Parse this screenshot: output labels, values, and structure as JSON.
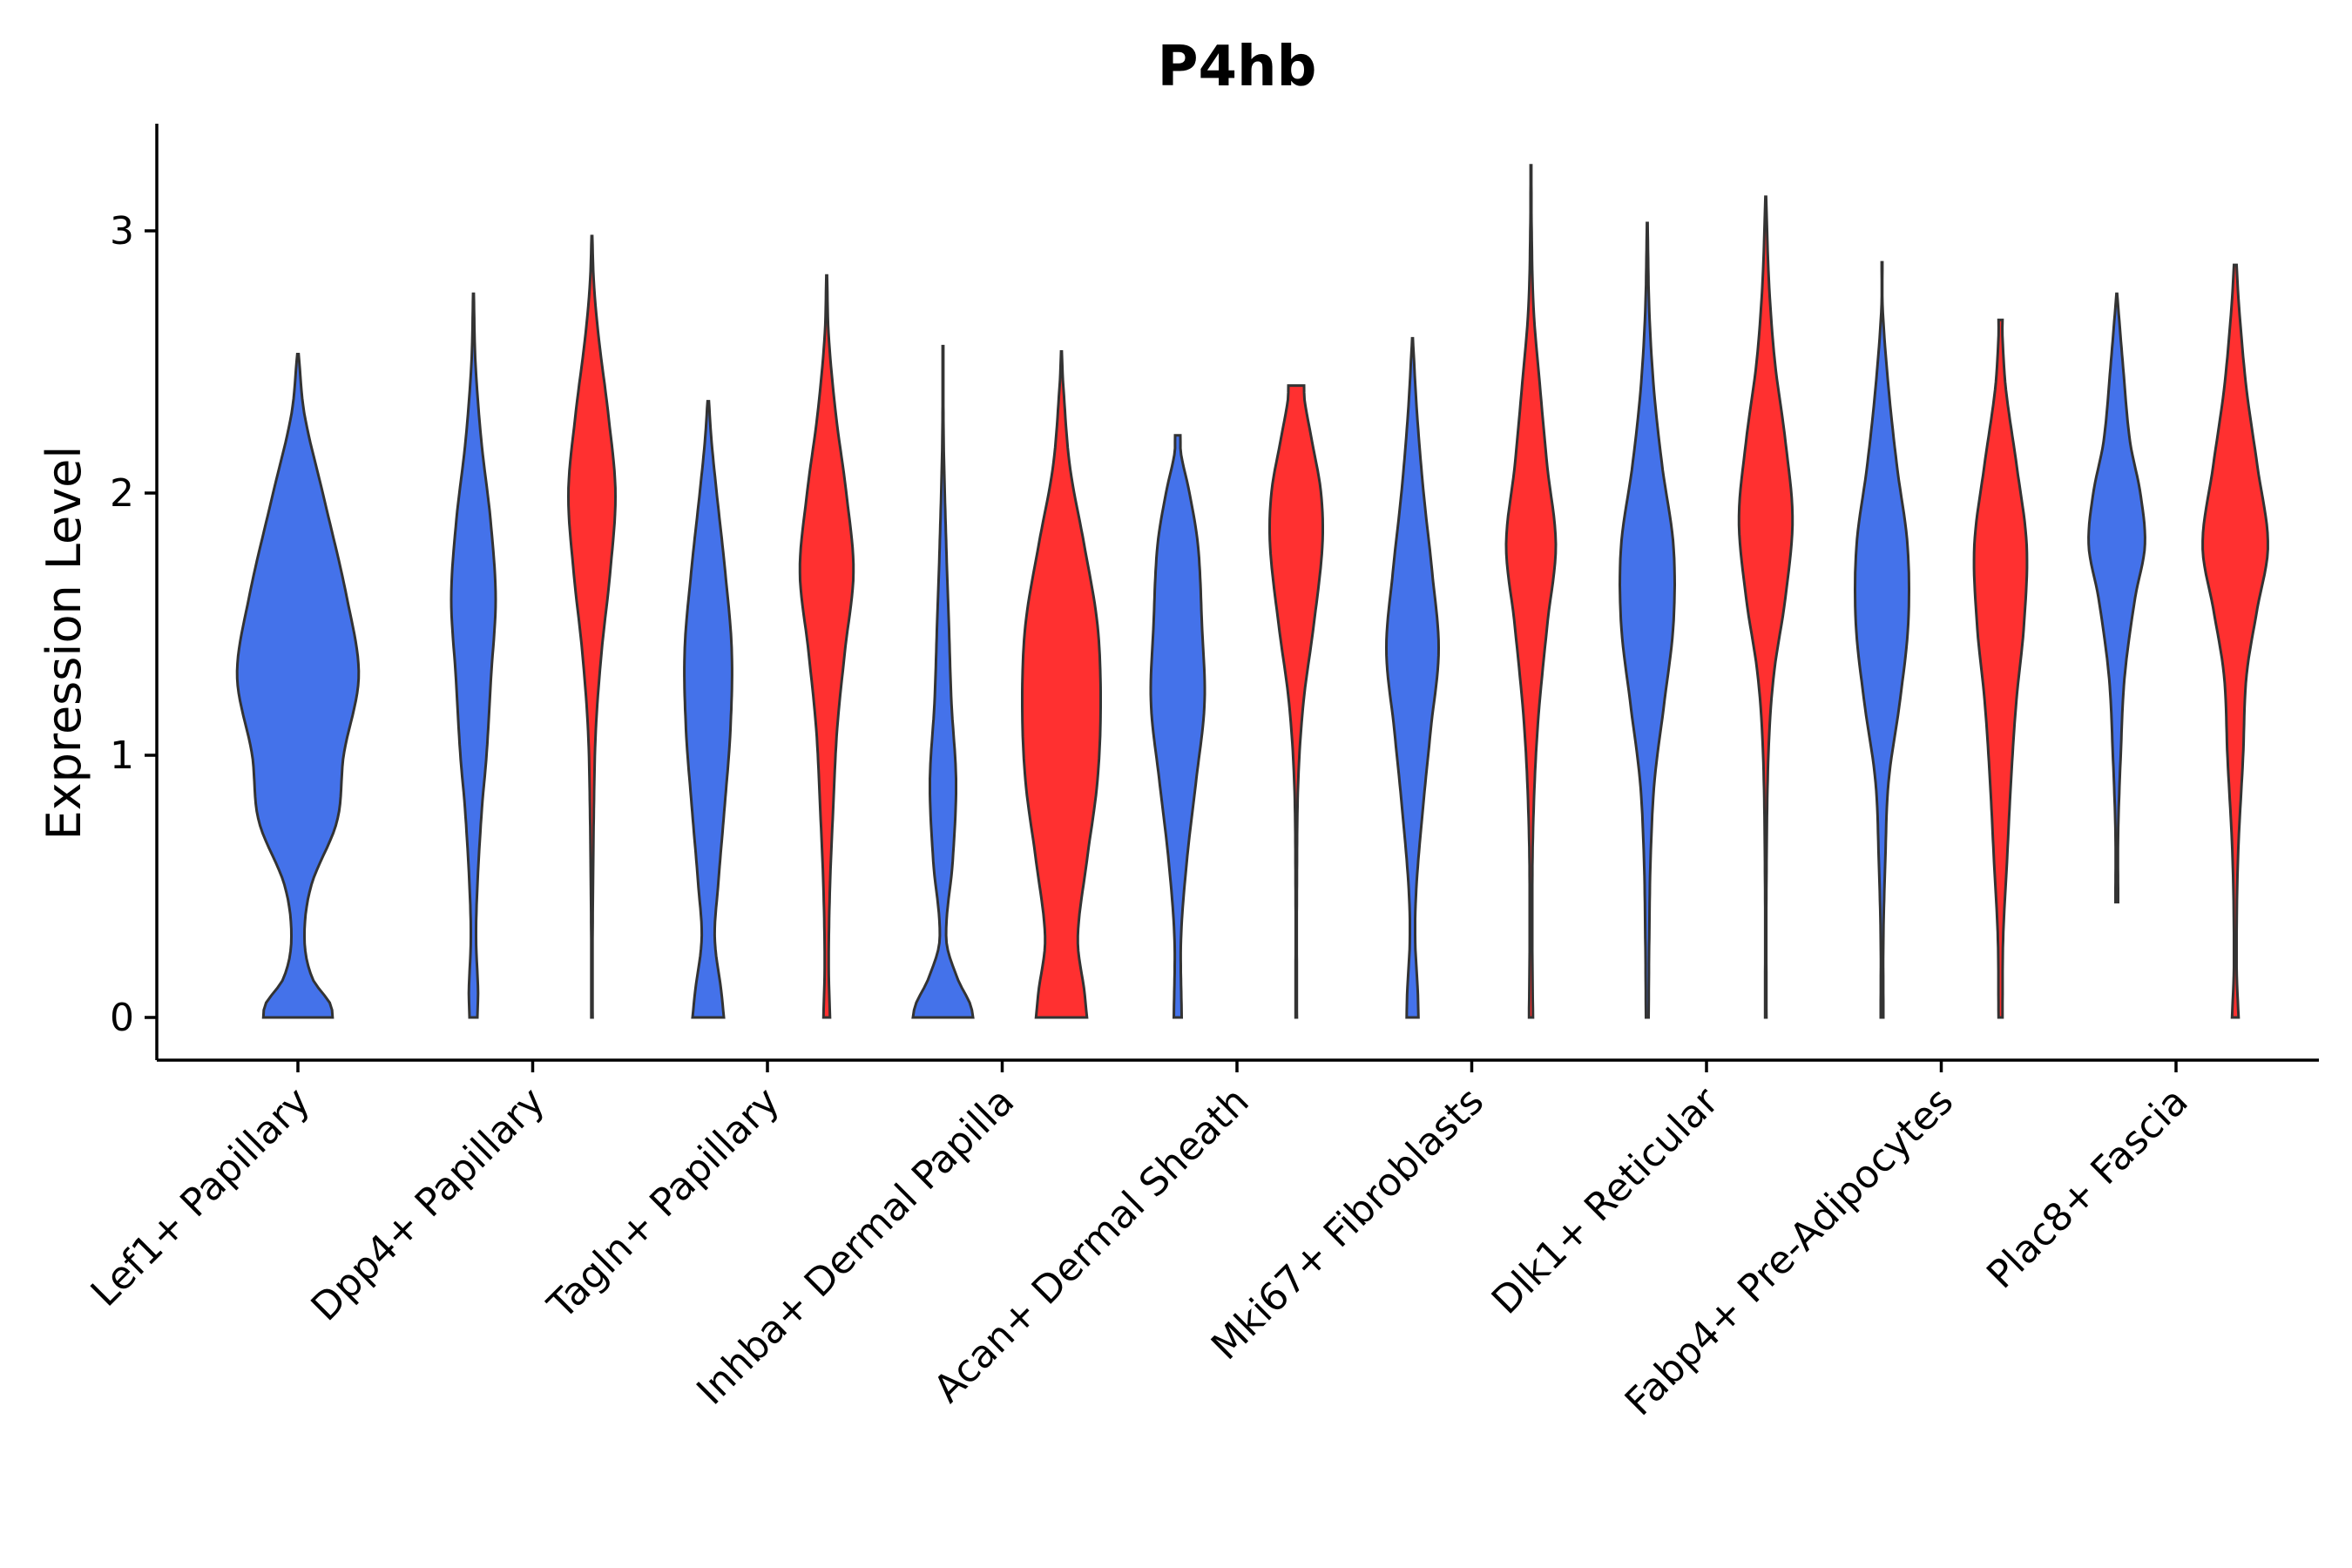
{
  "chart_data": {
    "type": "violin",
    "title": "P4hb",
    "xlabel": "",
    "ylabel": "Expression Level",
    "ylim": [
      -0.16,
      3.42
    ],
    "yticks": [
      0,
      1,
      2,
      3
    ],
    "categories": [
      "Lef1+ Papillary",
      "Dpp4+ Papillary",
      "Tagln+ Papillary",
      "Inhba+ Dermal Papilla",
      "Acan+ Dermal Sheath",
      "Mki67+ Fibroblasts",
      "Dlk1+ Reticular",
      "Fabp4+ Pre-Adipocytes",
      "Plac8+ Fascia"
    ],
    "series": [
      {
        "name": "group-blue",
        "color": "#4472EA",
        "violins": [
          {
            "category": "Lef1+ Papillary",
            "min": 0,
            "max": 2.53,
            "profile": [
              [
                0,
                0.53
              ],
              [
                0.05,
                0.5
              ],
              [
                0.15,
                0.22
              ],
              [
                0.3,
                0.1
              ],
              [
                0.5,
                0.2
              ],
              [
                0.75,
                0.6
              ],
              [
                1.0,
                0.7
              ],
              [
                1.3,
                0.93
              ],
              [
                1.6,
                0.75
              ],
              [
                2.0,
                0.38
              ],
              [
                2.3,
                0.1
              ],
              [
                2.53,
                0.01
              ]
            ]
          },
          {
            "category": "Dpp4+ Papillary",
            "min": 0,
            "max": 2.76,
            "profile": [
              [
                0,
                0.06
              ],
              [
                0.1,
                0.07
              ],
              [
                0.3,
                0.04
              ],
              [
                0.5,
                0.06
              ],
              [
                0.8,
                0.13
              ],
              [
                1.0,
                0.2
              ],
              [
                1.3,
                0.27
              ],
              [
                1.6,
                0.34
              ],
              [
                1.9,
                0.26
              ],
              [
                2.2,
                0.12
              ],
              [
                2.5,
                0.03
              ],
              [
                2.76,
                0.005
              ]
            ]
          },
          {
            "category": "Tagln+ Papillary",
            "min": 0,
            "max": 2.35,
            "profile": [
              [
                0,
                0.24
              ],
              [
                0.1,
                0.2
              ],
              [
                0.3,
                0.1
              ],
              [
                0.5,
                0.15
              ],
              [
                0.8,
                0.25
              ],
              [
                1.1,
                0.34
              ],
              [
                1.4,
                0.36
              ],
              [
                1.7,
                0.26
              ],
              [
                2.0,
                0.13
              ],
              [
                2.2,
                0.05
              ],
              [
                2.35,
                0.01
              ]
            ]
          },
          {
            "category": "Inhba+ Dermal Papilla",
            "min": 0,
            "max": 2.56,
            "profile": [
              [
                0,
                0.46
              ],
              [
                0.05,
                0.42
              ],
              [
                0.15,
                0.22
              ],
              [
                0.3,
                0.05
              ],
              [
                0.6,
                0.15
              ],
              [
                0.9,
                0.2
              ],
              [
                1.2,
                0.13
              ],
              [
                1.5,
                0.09
              ],
              [
                1.8,
                0.05
              ],
              [
                2.2,
                0.01
              ],
              [
                2.56,
                0.005
              ]
            ]
          },
          {
            "category": "Acan+ Dermal Sheath",
            "min": 0,
            "max": 2.22,
            "profile": [
              [
                0,
                0.06
              ],
              [
                0.3,
                0.05
              ],
              [
                0.6,
                0.14
              ],
              [
                0.9,
                0.28
              ],
              [
                1.2,
                0.41
              ],
              [
                1.5,
                0.37
              ],
              [
                1.8,
                0.31
              ],
              [
                2.0,
                0.18
              ],
              [
                2.15,
                0.05
              ],
              [
                2.22,
                0.04
              ]
            ]
          },
          {
            "category": "Mki67+ Fibroblasts",
            "min": 0,
            "max": 2.59,
            "profile": [
              [
                0,
                0.09
              ],
              [
                0.1,
                0.08
              ],
              [
                0.3,
                0.04
              ],
              [
                0.5,
                0.06
              ],
              [
                0.8,
                0.16
              ],
              [
                1.1,
                0.28
              ],
              [
                1.4,
                0.4
              ],
              [
                1.7,
                0.3
              ],
              [
                2.0,
                0.17
              ],
              [
                2.3,
                0.07
              ],
              [
                2.59,
                0.005
              ]
            ]
          },
          {
            "category": "Dlk1+ Reticular",
            "min": 0,
            "max": 3.03,
            "profile": [
              [
                0,
                0.02
              ],
              [
                0.3,
                0.03
              ],
              [
                0.6,
                0.05
              ],
              [
                0.9,
                0.11
              ],
              [
                1.2,
                0.26
              ],
              [
                1.5,
                0.4
              ],
              [
                1.8,
                0.4
              ],
              [
                2.1,
                0.23
              ],
              [
                2.4,
                0.1
              ],
              [
                2.7,
                0.03
              ],
              [
                3.03,
                0.005
              ]
            ]
          },
          {
            "category": "Fabp4+ Pre-Adipocytes",
            "min": 0,
            "max": 2.88,
            "profile": [
              [
                0,
                0.02
              ],
              [
                0.3,
                0.02
              ],
              [
                0.6,
                0.05
              ],
              [
                0.9,
                0.1
              ],
              [
                1.2,
                0.27
              ],
              [
                1.5,
                0.4
              ],
              [
                1.8,
                0.39
              ],
              [
                2.1,
                0.23
              ],
              [
                2.4,
                0.1
              ],
              [
                2.7,
                0.01
              ],
              [
                2.88,
                0.005
              ]
            ]
          },
          {
            "category": "Plac8+ Fascia",
            "min": 0.44,
            "max": 2.76,
            "profile": [
              [
                0.44,
                0.02
              ],
              [
                0.7,
                0.02
              ],
              [
                1.0,
                0.06
              ],
              [
                1.3,
                0.12
              ],
              [
                1.6,
                0.28
              ],
              [
                1.8,
                0.43
              ],
              [
                2.0,
                0.36
              ],
              [
                2.2,
                0.2
              ],
              [
                2.5,
                0.09
              ],
              [
                2.76,
                0.005
              ]
            ]
          }
        ]
      },
      {
        "name": "group-red",
        "color": "#FF3030",
        "violins": [
          {
            "category": "Dpp4+ Papillary",
            "min": 0,
            "max": 2.98,
            "profile": [
              [
                0,
                0.01
              ],
              [
                0.3,
                0.01
              ],
              [
                0.8,
                0.03
              ],
              [
                1.1,
                0.06
              ],
              [
                1.4,
                0.15
              ],
              [
                1.7,
                0.28
              ],
              [
                2.0,
                0.36
              ],
              [
                2.3,
                0.25
              ],
              [
                2.6,
                0.1
              ],
              [
                2.8,
                0.03
              ],
              [
                2.98,
                0.005
              ]
            ]
          },
          {
            "category": "Tagln+ Papillary",
            "min": 0,
            "max": 2.83,
            "profile": [
              [
                0,
                0.05
              ],
              [
                0.2,
                0.03
              ],
              [
                0.5,
                0.05
              ],
              [
                0.8,
                0.1
              ],
              [
                1.1,
                0.16
              ],
              [
                1.4,
                0.28
              ],
              [
                1.7,
                0.41
              ],
              [
                2.0,
                0.3
              ],
              [
                2.3,
                0.14
              ],
              [
                2.6,
                0.03
              ],
              [
                2.83,
                0.005
              ]
            ]
          },
          {
            "category": "Inhba+ Dermal Papilla",
            "min": 0,
            "max": 2.54,
            "profile": [
              [
                0,
                0.39
              ],
              [
                0.1,
                0.35
              ],
              [
                0.3,
                0.25
              ],
              [
                0.6,
                0.39
              ],
              [
                0.9,
                0.55
              ],
              [
                1.2,
                0.6
              ],
              [
                1.5,
                0.55
              ],
              [
                1.8,
                0.35
              ],
              [
                2.1,
                0.13
              ],
              [
                2.4,
                0.03
              ],
              [
                2.54,
                0.005
              ]
            ]
          },
          {
            "category": "Acan+ Dermal Sheath",
            "min": 0,
            "max": 2.41,
            "profile": [
              [
                0,
                0.01
              ],
              [
                0.5,
                0.01
              ],
              [
                0.9,
                0.03
              ],
              [
                1.2,
                0.11
              ],
              [
                1.5,
                0.27
              ],
              [
                1.8,
                0.4
              ],
              [
                2.0,
                0.38
              ],
              [
                2.2,
                0.24
              ],
              [
                2.35,
                0.13
              ],
              [
                2.41,
                0.12
              ]
            ]
          },
          {
            "category": "Mki67+ Fibroblasts",
            "min": 0,
            "max": 3.25,
            "profile": [
              [
                0,
                0.03
              ],
              [
                0.3,
                0.02
              ],
              [
                0.7,
                0.03
              ],
              [
                1.1,
                0.1
              ],
              [
                1.5,
                0.25
              ],
              [
                1.8,
                0.38
              ],
              [
                2.1,
                0.25
              ],
              [
                2.4,
                0.14
              ],
              [
                2.7,
                0.04
              ],
              [
                3.0,
                0.01
              ],
              [
                3.25,
                0.005
              ]
            ]
          },
          {
            "category": "Dlk1+ Reticular",
            "min": 0,
            "max": 3.13,
            "profile": [
              [
                0,
                0.01
              ],
              [
                0.5,
                0.01
              ],
              [
                1.0,
                0.04
              ],
              [
                1.3,
                0.12
              ],
              [
                1.6,
                0.3
              ],
              [
                1.9,
                0.41
              ],
              [
                2.2,
                0.3
              ],
              [
                2.5,
                0.14
              ],
              [
                2.8,
                0.05
              ],
              [
                3.13,
                0.005
              ]
            ]
          },
          {
            "category": "Fabp4+ Pre-Adipocytes",
            "min": 0,
            "max": 2.66,
            "profile": [
              [
                0,
                0.03
              ],
              [
                0.3,
                0.04
              ],
              [
                0.6,
                0.1
              ],
              [
                0.9,
                0.16
              ],
              [
                1.2,
                0.24
              ],
              [
                1.5,
                0.36
              ],
              [
                1.8,
                0.4
              ],
              [
                2.1,
                0.25
              ],
              [
                2.4,
                0.08
              ],
              [
                2.6,
                0.03
              ],
              [
                2.66,
                0.03
              ]
            ]
          },
          {
            "category": "Plac8+ Fascia",
            "min": 0,
            "max": 2.87,
            "profile": [
              [
                0,
                0.05
              ],
              [
                0.2,
                0.02
              ],
              [
                0.6,
                0.04
              ],
              [
                1.0,
                0.12
              ],
              [
                1.3,
                0.17
              ],
              [
                1.55,
                0.33
              ],
              [
                1.8,
                0.5
              ],
              [
                2.1,
                0.34
              ],
              [
                2.4,
                0.17
              ],
              [
                2.7,
                0.06
              ],
              [
                2.87,
                0.02
              ]
            ]
          }
        ]
      }
    ]
  }
}
